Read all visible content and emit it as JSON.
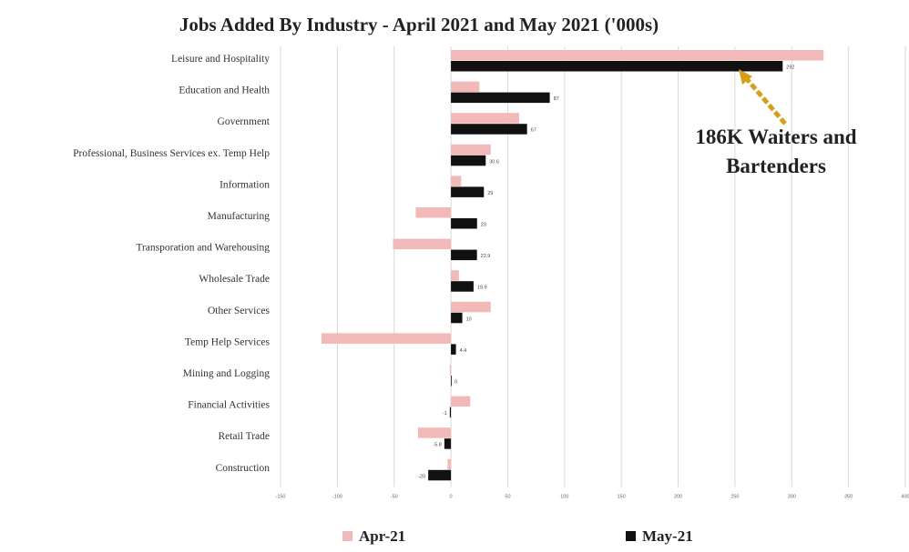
{
  "chart_data": {
    "type": "bar",
    "orientation": "horizontal",
    "title": "Jobs Added By Industry - April 2021 and May 2021 ('000s)",
    "categories": [
      "Leisure and Hospitality",
      "Education and Health",
      "Government",
      "Professional, Business Services ex. Temp Help",
      "Information",
      "Manufacturing",
      "Transporation and Warehousing",
      "Wholesale Trade",
      "Other Services",
      "Temp Help Services",
      "Mining and Logging",
      "Financial Activities",
      "Retail Trade",
      "Construction"
    ],
    "series": [
      {
        "name": "Apr-21",
        "color": "#f2b9b9",
        "values": [
          328,
          25,
          60,
          35,
          9,
          -31,
          -51,
          7,
          35,
          -114,
          -1,
          17,
          -29,
          -3
        ],
        "labels": [
          "",
          "",
          "",
          "",
          "",
          "",
          "",
          "",
          "",
          "",
          "",
          "",
          "",
          ""
        ]
      },
      {
        "name": "May-21",
        "color": "#111111",
        "values": [
          292,
          87,
          67,
          30.6,
          29,
          23,
          22.9,
          19.9,
          10,
          4.4,
          0,
          -1,
          -5.8,
          -20
        ],
        "labels": [
          "292",
          "87",
          "67",
          "30.6",
          "29",
          "23",
          "22.9",
          "19.9",
          "10",
          "4.4",
          "0",
          "-1",
          "-5.8",
          "-20"
        ]
      }
    ],
    "xlim": [
      -150,
      400
    ],
    "xticks": [
      -150,
      -100,
      -50,
      0,
      50,
      100,
      150,
      200,
      250,
      300,
      350,
      400
    ],
    "grid": true,
    "legend": "bottom",
    "annotation": {
      "lines": [
        "186K Waiters and",
        "Bartenders"
      ],
      "arrow_color": "#d4a017",
      "points_to": "Leisure and Hospitality"
    }
  }
}
